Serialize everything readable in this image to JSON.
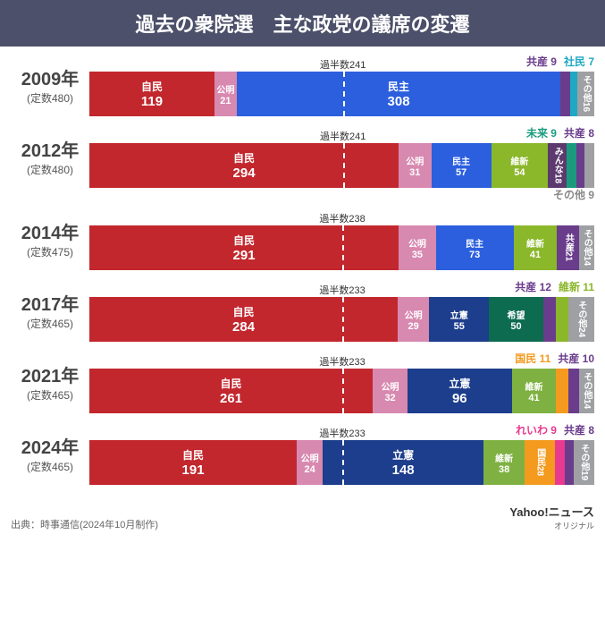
{
  "title": "過去の衆院選　主な政党の議席の変遷",
  "colors": {
    "jimin": "#c2272d",
    "komei": "#d889b0",
    "minshu": "#2b5fde",
    "ishin": "#8bb72b",
    "ishin2": "#7fb142",
    "kyosan": "#6a3c8c",
    "shamin": "#1fa8c4",
    "other": "#9ea0a3",
    "mirai": "#1a9b7e",
    "minna": "#5c3a6e",
    "rikken": "#1d3e8c",
    "kibou": "#0d6b50",
    "kokumin": "#f39a1f",
    "reiwa": "#e93a8f"
  },
  "rows": [
    {
      "year": "2009年",
      "total": "(定数480)",
      "totalSeats": 480,
      "majority": "過半数241",
      "majorityAt": 241,
      "topLabels": [
        {
          "text": "共産 9",
          "color": "#6a3c8c"
        },
        {
          "text": "社民 7",
          "color": "#1fa8c4"
        }
      ],
      "segments": [
        {
          "name": "自民",
          "value": 119,
          "color": "jimin"
        },
        {
          "name": "公明",
          "value": 21,
          "color": "komei",
          "small": true
        },
        {
          "name": "民主",
          "value": 308,
          "color": "minshu"
        },
        {
          "name": "",
          "value": 9,
          "color": "kyosan"
        },
        {
          "name": "",
          "value": 7,
          "color": "shamin"
        },
        {
          "name": "その他",
          "value": 16,
          "color": "other",
          "vertical": true
        }
      ]
    },
    {
      "year": "2012年",
      "total": "(定数480)",
      "totalSeats": 480,
      "majority": "過半数241",
      "majorityAt": 241,
      "topLabels": [
        {
          "text": "未来 9",
          "color": "#1a9b7e"
        },
        {
          "text": "共産 8",
          "color": "#6a3c8c"
        }
      ],
      "bottomLabel": "その他 9",
      "segments": [
        {
          "name": "自民",
          "value": 294,
          "color": "jimin"
        },
        {
          "name": "公明",
          "value": 31,
          "color": "komei",
          "small": true
        },
        {
          "name": "民主",
          "value": 57,
          "color": "minshu",
          "small": true
        },
        {
          "name": "維新",
          "value": 54,
          "color": "ishin",
          "small": true
        },
        {
          "name": "みんな",
          "value": 18,
          "color": "minna",
          "vertical": true
        },
        {
          "name": "",
          "value": 9,
          "color": "mirai"
        },
        {
          "name": "",
          "value": 8,
          "color": "kyosan"
        },
        {
          "name": "",
          "value": 9,
          "color": "other"
        }
      ]
    },
    {
      "year": "2014年",
      "total": "(定数475)",
      "totalSeats": 475,
      "majority": "過半数238",
      "majorityAt": 238,
      "segments": [
        {
          "name": "自民",
          "value": 291,
          "color": "jimin"
        },
        {
          "name": "公明",
          "value": 35,
          "color": "komei",
          "small": true
        },
        {
          "name": "民主",
          "value": 73,
          "color": "minshu",
          "small": true
        },
        {
          "name": "維新",
          "value": 41,
          "color": "ishin",
          "small": true
        },
        {
          "name": "共産",
          "value": 21,
          "color": "kyosan",
          "vertical": true
        },
        {
          "name": "その他",
          "value": 14,
          "color": "other",
          "vertical": true
        }
      ]
    },
    {
      "year": "2017年",
      "total": "(定数465)",
      "totalSeats": 465,
      "majority": "過半数233",
      "majorityAt": 233,
      "topLabels": [
        {
          "text": "共産 12",
          "color": "#6a3c8c"
        },
        {
          "text": "維新 11",
          "color": "#8bb72b"
        }
      ],
      "segments": [
        {
          "name": "自民",
          "value": 284,
          "color": "jimin"
        },
        {
          "name": "公明",
          "value": 29,
          "color": "komei",
          "small": true
        },
        {
          "name": "立憲",
          "value": 55,
          "color": "rikken",
          "small": true
        },
        {
          "name": "希望",
          "value": 50,
          "color": "kibou",
          "small": true
        },
        {
          "name": "",
          "value": 12,
          "color": "kyosan"
        },
        {
          "name": "",
          "value": 11,
          "color": "ishin"
        },
        {
          "name": "その他",
          "value": 24,
          "color": "other",
          "vertical": true
        }
      ]
    },
    {
      "year": "2021年",
      "total": "(定数465)",
      "totalSeats": 465,
      "majority": "過半数233",
      "majorityAt": 233,
      "topLabels": [
        {
          "text": "国民 11",
          "color": "#f39a1f"
        },
        {
          "text": "共産 10",
          "color": "#6a3c8c"
        }
      ],
      "segments": [
        {
          "name": "自民",
          "value": 261,
          "color": "jimin"
        },
        {
          "name": "公明",
          "value": 32,
          "color": "komei",
          "small": true
        },
        {
          "name": "立憲",
          "value": 96,
          "color": "rikken"
        },
        {
          "name": "維新",
          "value": 41,
          "color": "ishin2",
          "small": true
        },
        {
          "name": "",
          "value": 11,
          "color": "kokumin"
        },
        {
          "name": "",
          "value": 10,
          "color": "kyosan"
        },
        {
          "name": "その他",
          "value": 14,
          "color": "other",
          "vertical": true
        }
      ]
    },
    {
      "year": "2024年",
      "total": "(定数465)",
      "totalSeats": 465,
      "majority": "過半数233",
      "majorityAt": 233,
      "topLabels": [
        {
          "text": "れいわ 9",
          "color": "#e93a8f"
        },
        {
          "text": "共産 8",
          "color": "#6a3c8c"
        }
      ],
      "segments": [
        {
          "name": "自民",
          "value": 191,
          "color": "jimin"
        },
        {
          "name": "公明",
          "value": 24,
          "color": "komei",
          "small": true
        },
        {
          "name": "立憲",
          "value": 148,
          "color": "rikken"
        },
        {
          "name": "維新",
          "value": 38,
          "color": "ishin2",
          "small": true
        },
        {
          "name": "国民",
          "value": 28,
          "color": "kokumin",
          "vertical": true
        },
        {
          "name": "",
          "value": 9,
          "color": "reiwa"
        },
        {
          "name": "",
          "value": 8,
          "color": "kyosan"
        },
        {
          "name": "その他",
          "value": 19,
          "color": "other",
          "vertical": true
        }
      ]
    }
  ],
  "source": "出典：時事通信(2024年10月制作)",
  "brand": {
    "main": "Yahoo!ニュース",
    "sub": "オリジナル"
  }
}
